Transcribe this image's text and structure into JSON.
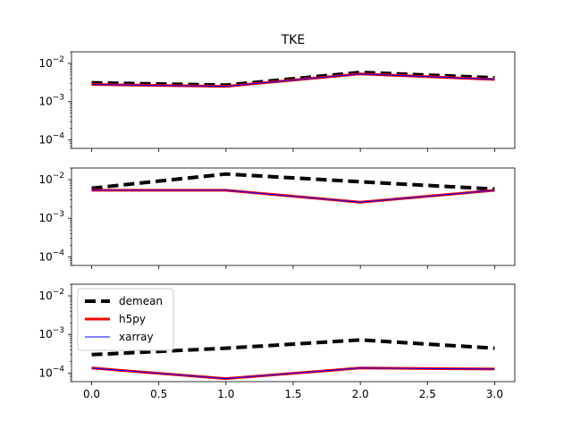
{
  "chart_data": {
    "type": "line",
    "title": "TKE",
    "x_tick_labels": [
      "0.0",
      "0.5",
      "1.0",
      "1.5",
      "2.0",
      "2.5",
      "3.0"
    ],
    "x_ticks": [
      0,
      0.5,
      1,
      1.5,
      2,
      2.5,
      3
    ],
    "xlim": [
      -0.15,
      3.15
    ],
    "yscale": "log",
    "ylim": [
      6e-05,
      0.02
    ],
    "y_ticks": [
      0.0001,
      0.001,
      0.01
    ],
    "y_tick_labels": [
      {
        "base": "10",
        "exp": "−4"
      },
      {
        "base": "10",
        "exp": "−3"
      },
      {
        "base": "10",
        "exp": "−2"
      }
    ],
    "sharex": true,
    "sharey": true,
    "legend": {
      "placement": "upper-left",
      "subplot": 2,
      "entries": [
        {
          "label": "demean",
          "color": "#000000",
          "style": "dashed"
        },
        {
          "label": "h5py",
          "color": "#ff0000",
          "style": "solid"
        },
        {
          "label": "xarray",
          "color": "#0000ff",
          "style": "solid"
        }
      ]
    },
    "subplots": [
      {
        "x": [
          0,
          1,
          2,
          3
        ],
        "series": [
          {
            "name": "demean",
            "values": [
              0.0031,
              0.0027,
              0.0058,
              0.0042
            ]
          },
          {
            "name": "h5py",
            "values": [
              0.0028,
              0.0025,
              0.0053,
              0.0038
            ]
          },
          {
            "name": "xarray",
            "values": [
              0.0028,
              0.0025,
              0.0053,
              0.0038
            ]
          }
        ]
      },
      {
        "x": [
          0,
          1,
          2,
          3
        ],
        "series": [
          {
            "name": "demean",
            "values": [
              0.006,
              0.014,
              0.0088,
              0.0057
            ]
          },
          {
            "name": "h5py",
            "values": [
              0.0053,
              0.0053,
              0.0026,
              0.0053
            ]
          },
          {
            "name": "xarray",
            "values": [
              0.0053,
              0.0053,
              0.0026,
              0.0053
            ]
          }
        ]
      },
      {
        "x": [
          0,
          1,
          2,
          3
        ],
        "series": [
          {
            "name": "demean",
            "values": [
              0.0003,
              0.00044,
              0.00072,
              0.00044
            ]
          },
          {
            "name": "h5py",
            "values": [
              0.000135,
              7.2e-05,
              0.000135,
              0.000127
            ]
          },
          {
            "name": "xarray",
            "values": [
              0.000135,
              7.2e-05,
              0.000135,
              0.000127
            ]
          }
        ]
      }
    ]
  }
}
